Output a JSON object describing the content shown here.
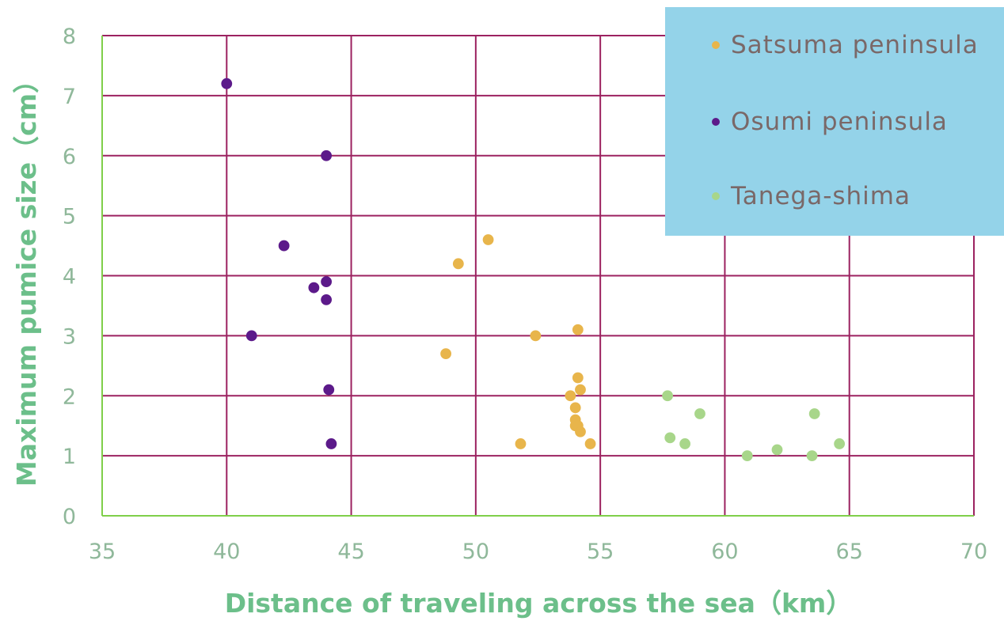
{
  "chart_data": {
    "type": "scatter",
    "xlabel": "Distance of traveling across the sea（km）",
    "ylabel": "Maximum pumice size（cm）",
    "xlim": [
      35,
      70
    ],
    "ylim": [
      0,
      8
    ],
    "xticks": [
      "35",
      "40",
      "45",
      "50",
      "55",
      "60",
      "65",
      "70"
    ],
    "yticks": [
      "0",
      "1",
      "2",
      "3",
      "4",
      "5",
      "6",
      "7",
      "8"
    ],
    "grid": true,
    "legend_position": "top-right",
    "series": [
      {
        "name": "Satsuma peninsula",
        "color": "#e8b54b",
        "points": [
          [
            48.8,
            2.7
          ],
          [
            49.3,
            4.2
          ],
          [
            50.5,
            4.6
          ],
          [
            51.8,
            1.2
          ],
          [
            52.4,
            3.0
          ],
          [
            53.8,
            2.0
          ],
          [
            54.0,
            1.8
          ],
          [
            54.0,
            1.5
          ],
          [
            54.0,
            1.6
          ],
          [
            54.1,
            1.5
          ],
          [
            54.1,
            2.3
          ],
          [
            54.1,
            3.1
          ],
          [
            54.2,
            2.1
          ],
          [
            54.2,
            1.4
          ],
          [
            54.6,
            1.2
          ]
        ]
      },
      {
        "name": "Osumi peninsula",
        "color": "#5c1a8a",
        "points": [
          [
            40.0,
            7.2
          ],
          [
            41.0,
            3.0
          ],
          [
            42.3,
            4.5
          ],
          [
            43.5,
            3.8
          ],
          [
            44.0,
            6.0
          ],
          [
            44.0,
            3.9
          ],
          [
            44.0,
            3.6
          ],
          [
            44.1,
            2.1
          ],
          [
            44.2,
            1.2
          ]
        ]
      },
      {
        "name": "Tanega-shima",
        "color": "#a8d68a",
        "points": [
          [
            57.7,
            2.0
          ],
          [
            57.8,
            1.3
          ],
          [
            58.4,
            1.2
          ],
          [
            59.0,
            1.7
          ],
          [
            60.9,
            1.0
          ],
          [
            62.1,
            1.1
          ],
          [
            63.5,
            1.0
          ],
          [
            63.6,
            1.7
          ],
          [
            64.6,
            1.2
          ]
        ]
      }
    ]
  },
  "colors": {
    "grid": "#9c2260",
    "axis": "#7fcf4a",
    "legend_background": "#94d3e9",
    "tick_text": "#8fb89a",
    "axis_title": "#6cbf8a"
  }
}
